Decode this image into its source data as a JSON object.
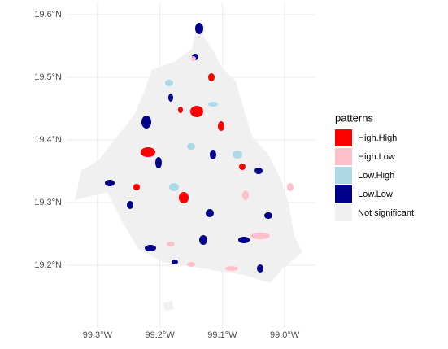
{
  "chart_data": {
    "type": "map",
    "xlim": [
      -99.35,
      -98.95
    ],
    "ylim": [
      19.1,
      19.62
    ],
    "xticks": [
      {
        "value": -99.3,
        "label": "99.3°W"
      },
      {
        "value": -99.2,
        "label": "99.2°W"
      },
      {
        "value": -99.1,
        "label": "99.1°W"
      },
      {
        "value": -99.0,
        "label": "99.0°W"
      }
    ],
    "yticks": [
      {
        "value": 19.2,
        "label": "19.2°N"
      },
      {
        "value": 19.3,
        "label": "19.3°N"
      },
      {
        "value": 19.4,
        "label": "19.4°N"
      },
      {
        "value": 19.5,
        "label": "19.5°N"
      },
      {
        "value": 19.6,
        "label": "19.6°N"
      }
    ],
    "grid": true,
    "legend": {
      "title": "patterns",
      "position": "right",
      "items": [
        {
          "label": "High.High",
          "color": "#ff0000"
        },
        {
          "label": "High.Low",
          "color": "#ffc0cb"
        },
        {
          "label": "Low.High",
          "color": "#add8e6"
        },
        {
          "label": "Low.Low",
          "color": "#00008b"
        },
        {
          "label": "Not significant",
          "color": "#f0f0f0"
        }
      ]
    }
  }
}
